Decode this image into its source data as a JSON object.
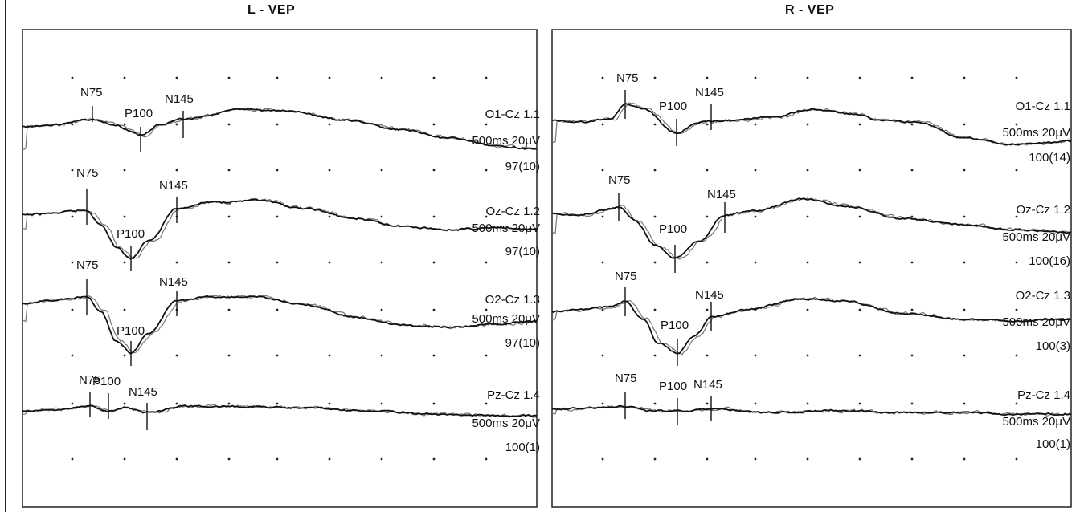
{
  "chart_data": [
    {
      "type": "line",
      "title": "L - VEP",
      "xlabel": "",
      "ylabel": "",
      "grid": true,
      "traces": [
        {
          "channel": "O1-Cz 1.1",
          "scale": "500ms 20μV",
          "avg": "97(10)",
          "peaks": [
            {
              "name": "N75"
            },
            {
              "name": "P100"
            },
            {
              "name": "N145"
            }
          ]
        },
        {
          "channel": "Oz-Cz 1.2",
          "scale": "500ms 20μV",
          "avg": "97(10)",
          "peaks": [
            {
              "name": "N75"
            },
            {
              "name": "P100"
            },
            {
              "name": "N145"
            }
          ]
        },
        {
          "channel": "O2-Cz 1.3",
          "scale": "500ms 20μV",
          "avg": "97(10)",
          "peaks": [
            {
              "name": "N75"
            },
            {
              "name": "P100"
            },
            {
              "name": "N145"
            }
          ]
        },
        {
          "channel": "Pz-Cz 1.4",
          "scale": "500ms 20μV",
          "avg": "100(1)",
          "peaks": [
            {
              "name": "N75"
            },
            {
              "name": "P100"
            },
            {
              "name": "N145"
            }
          ]
        }
      ]
    },
    {
      "type": "line",
      "title": "R - VEP",
      "xlabel": "",
      "ylabel": "",
      "grid": true,
      "traces": [
        {
          "channel": "O1-Cz 1.1",
          "scale": "500ms 20μV",
          "avg": "100(14)",
          "peaks": [
            {
              "name": "N75"
            },
            {
              "name": "P100"
            },
            {
              "name": "N145"
            }
          ]
        },
        {
          "channel": "Oz-Cz 1.2",
          "scale": "500ms 20μV",
          "avg": "100(16)",
          "peaks": [
            {
              "name": "N75"
            },
            {
              "name": "P100"
            },
            {
              "name": "N145"
            }
          ]
        },
        {
          "channel": "O2-Cz 1.3",
          "scale": "500ms 20μV",
          "avg": "100(3)",
          "peaks": [
            {
              "name": "N75"
            },
            {
              "name": "P100"
            },
            {
              "name": "N145"
            }
          ]
        },
        {
          "channel": "Pz-Cz 1.4",
          "scale": "500ms 20μV",
          "avg": "100(1)",
          "peaks": [
            {
              "name": "N75"
            },
            {
              "name": "P100"
            },
            {
              "name": "N145"
            }
          ]
        }
      ]
    }
  ],
  "colors": {
    "trace_primary": "#111111",
    "trace_secondary": "#777777",
    "grid_dot": "#222222",
    "frame": "#222222"
  }
}
